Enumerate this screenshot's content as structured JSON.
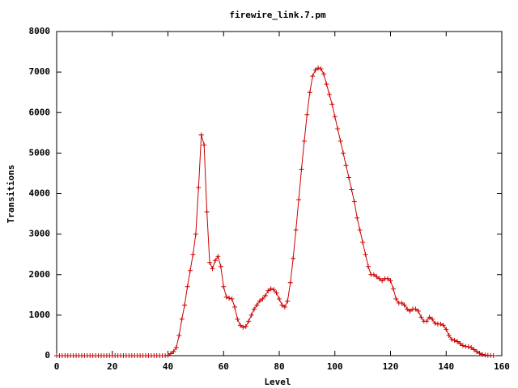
{
  "chart_data": {
    "type": "line",
    "title": "firewire_link.7.pm",
    "x_label": "Level",
    "y_label": "Transitions",
    "x": [
      0,
      1,
      2,
      3,
      4,
      5,
      6,
      7,
      8,
      9,
      10,
      11,
      12,
      13,
      14,
      15,
      16,
      17,
      18,
      19,
      20,
      21,
      22,
      23,
      24,
      25,
      26,
      27,
      28,
      29,
      30,
      31,
      32,
      33,
      34,
      35,
      36,
      37,
      38,
      39,
      40,
      41,
      42,
      43,
      44,
      45,
      46,
      47,
      48,
      49,
      50,
      51,
      52,
      53,
      54,
      55,
      56,
      57,
      58,
      59,
      60,
      61,
      62,
      63,
      64,
      65,
      66,
      67,
      68,
      69,
      70,
      71,
      72,
      73,
      74,
      75,
      76,
      77,
      78,
      79,
      80,
      81,
      82,
      83,
      84,
      85,
      86,
      87,
      88,
      89,
      90,
      91,
      92,
      93,
      94,
      95,
      96,
      97,
      98,
      99,
      100,
      101,
      102,
      103,
      104,
      105,
      106,
      107,
      108,
      109,
      110,
      111,
      112,
      113,
      114,
      115,
      116,
      117,
      118,
      119,
      120,
      121,
      122,
      123,
      124,
      125,
      126,
      127,
      128,
      129,
      130,
      131,
      132,
      133,
      134,
      135,
      136,
      137,
      138,
      139,
      140,
      141,
      142,
      143,
      144,
      145,
      146,
      147,
      148,
      149,
      150,
      151,
      152,
      153,
      154,
      155,
      156,
      157
    ],
    "series": [
      {
        "name": "firewire_link.7.pm",
        "color": "#cc0000",
        "values": [
          0,
          0,
          0,
          0,
          0,
          0,
          0,
          0,
          0,
          0,
          0,
          0,
          0,
          0,
          0,
          0,
          0,
          0,
          0,
          0,
          0,
          0,
          0,
          0,
          0,
          0,
          0,
          0,
          0,
          0,
          0,
          0,
          0,
          0,
          0,
          0,
          0,
          0,
          0,
          0,
          10,
          50,
          100,
          200,
          500,
          900,
          1250,
          1700,
          2100,
          2500,
          3000,
          4150,
          5450,
          5200,
          3550,
          2300,
          2150,
          2350,
          2450,
          2200,
          1700,
          1450,
          1420,
          1400,
          1200,
          900,
          750,
          700,
          720,
          850,
          1000,
          1150,
          1250,
          1350,
          1400,
          1480,
          1600,
          1650,
          1630,
          1550,
          1400,
          1250,
          1200,
          1350,
          1800,
          2400,
          3100,
          3850,
          4600,
          5300,
          5950,
          6500,
          6900,
          7050,
          7100,
          7080,
          6950,
          6700,
          6450,
          6200,
          5900,
          5600,
          5300,
          5000,
          4700,
          4400,
          4100,
          3800,
          3400,
          3100,
          2800,
          2500,
          2200,
          2000,
          2000,
          1950,
          1900,
          1850,
          1900,
          1900,
          1850,
          1650,
          1400,
          1300,
          1300,
          1250,
          1150,
          1100,
          1150,
          1150,
          1100,
          950,
          850,
          850,
          950,
          900,
          800,
          780,
          780,
          750,
          650,
          500,
          400,
          380,
          350,
          300,
          250,
          230,
          220,
          200,
          150,
          100,
          60,
          30,
          15,
          10,
          5,
          0
        ]
      }
    ],
    "xlim": [
      0,
      160
    ],
    "xticks": [
      0,
      20,
      40,
      60,
      80,
      100,
      120,
      140,
      160
    ],
    "ylim": [
      0,
      8000
    ],
    "yticks": [
      0,
      1000,
      2000,
      3000,
      4000,
      5000,
      6000,
      7000,
      8000
    ]
  }
}
